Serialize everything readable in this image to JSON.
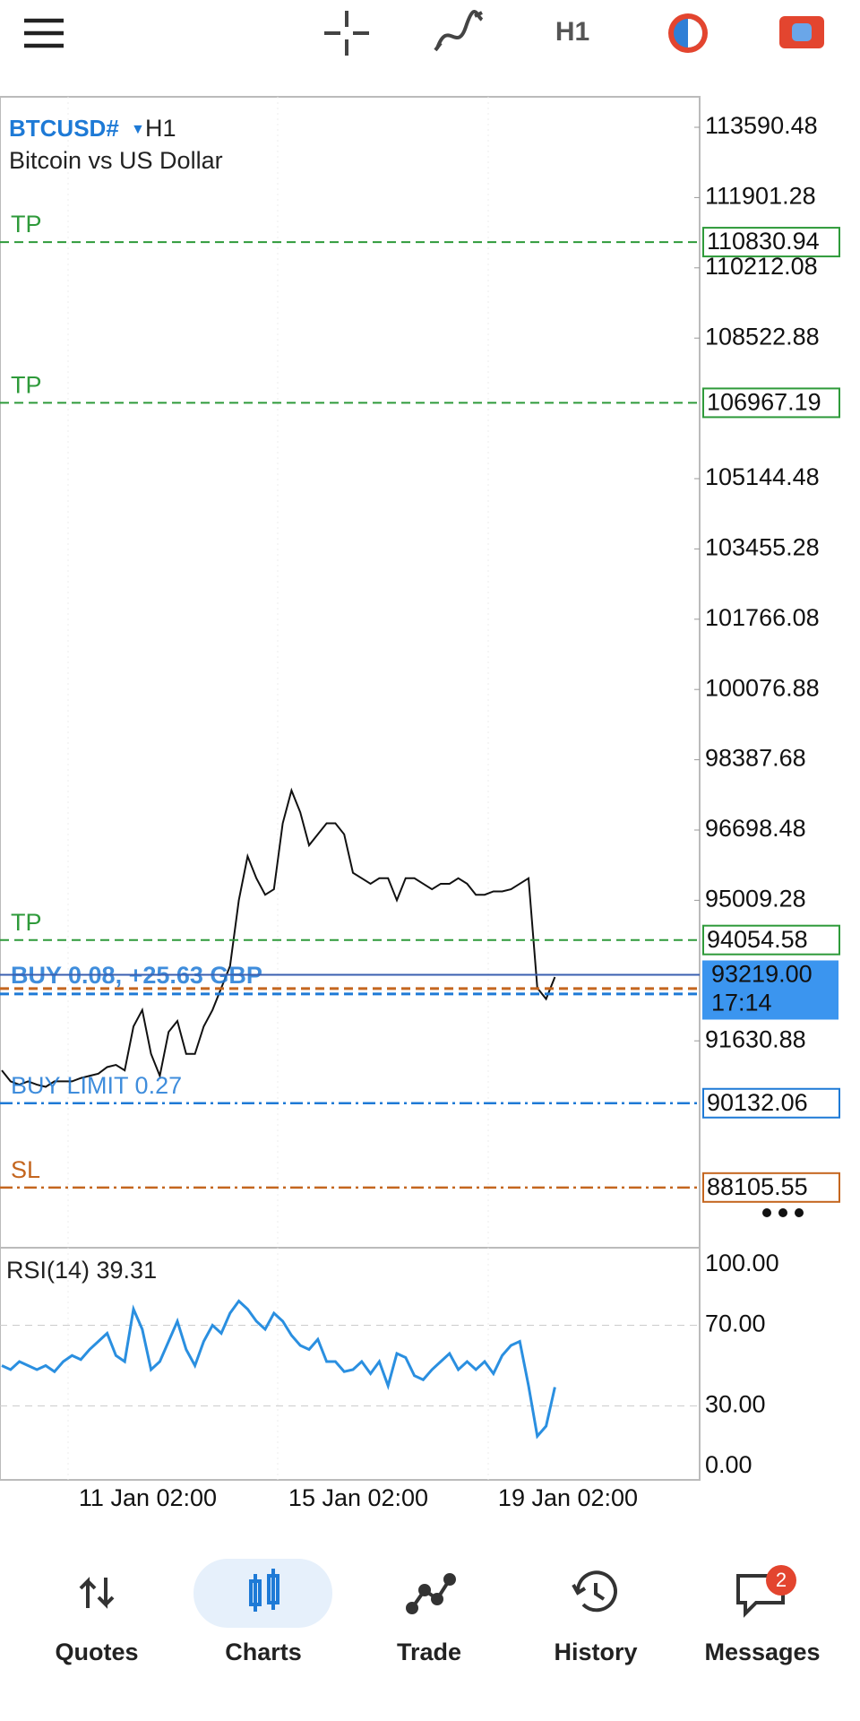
{
  "toolbar": {
    "timeframe": "H1"
  },
  "chart": {
    "symbol": "BTCUSD#",
    "timeframe": "H1",
    "description": "Bitcoin vs US Dollar",
    "ylim": [
      86658,
      114323
    ],
    "yticks": [
      113590.48,
      111901.28,
      110212.08,
      108522.88,
      105144.48,
      103455.28,
      101766.08,
      100076.88,
      98387.68,
      96698.48,
      95009.28,
      91630.88
    ],
    "prices": [
      90921,
      90657,
      90578,
      90657,
      90578,
      90525,
      90657,
      90657,
      90657,
      90736,
      90789,
      90842,
      91000,
      91053,
      90921,
      91977,
      92372,
      91317,
      90789,
      91845,
      92109,
      91317,
      91317,
      91977,
      92372,
      92900,
      93428,
      95011,
      96067,
      95539,
      95143,
      95275,
      96859,
      97650,
      97123,
      96331,
      96595,
      96859,
      96859,
      96595,
      95671,
      95539,
      95407,
      95539,
      95539,
      95011,
      95539,
      95539,
      95407,
      95275,
      95407,
      95407,
      95539,
      95407,
      95143,
      95143,
      95223,
      95223,
      95275,
      95407,
      95539,
      92900,
      92636,
      93164
    ],
    "take_profits": [
      {
        "label": "TP",
        "price": 110830.94
      },
      {
        "label": "TP",
        "price": 106967.19
      },
      {
        "label": "TP",
        "price": 94054.58
      }
    ],
    "position": {
      "label": "BUY 0.08, +25.63 GBP",
      "price": 92822
    },
    "pending": {
      "label": "BUY LIMIT 0.27",
      "price": 90132.06
    },
    "stop": {
      "label": "SL",
      "price": 88105.55
    },
    "last": {
      "price": {
        "value": 93219,
        "label": "93219.00"
      },
      "time": "17:14"
    },
    "x_labels": [
      "11 Jan 02:00",
      "15 Jan 02:00",
      "19 Jan 02:00"
    ]
  },
  "rsi": {
    "label": "RSI(14) 39.31",
    "ylim": [
      0,
      100
    ],
    "yticks": [
      {
        "value": 100,
        "label": "100.00"
      },
      {
        "value": 70,
        "label": "70.00"
      },
      {
        "value": 30,
        "label": "30.00"
      },
      {
        "value": 0,
        "label": "0.00"
      }
    ],
    "values": [
      50,
      48,
      52,
      50,
      48,
      50,
      47,
      52,
      55,
      53,
      58,
      62,
      66,
      55,
      52,
      78,
      68,
      48,
      52,
      62,
      72,
      58,
      50,
      62,
      70,
      66,
      76,
      82,
      78,
      72,
      68,
      76,
      72,
      65,
      60,
      58,
      63,
      52,
      52,
      47,
      48,
      52,
      46,
      52,
      40,
      56,
      54,
      45,
      43,
      48,
      52,
      56,
      48,
      52,
      48,
      52,
      46,
      55,
      60,
      62,
      40,
      15,
      20,
      39.31
    ]
  },
  "nav": [
    {
      "label": "Quotes"
    },
    {
      "label": "Charts"
    },
    {
      "label": "Trade"
    },
    {
      "label": "History"
    },
    {
      "label": "Messages"
    }
  ],
  "badge": 2
}
